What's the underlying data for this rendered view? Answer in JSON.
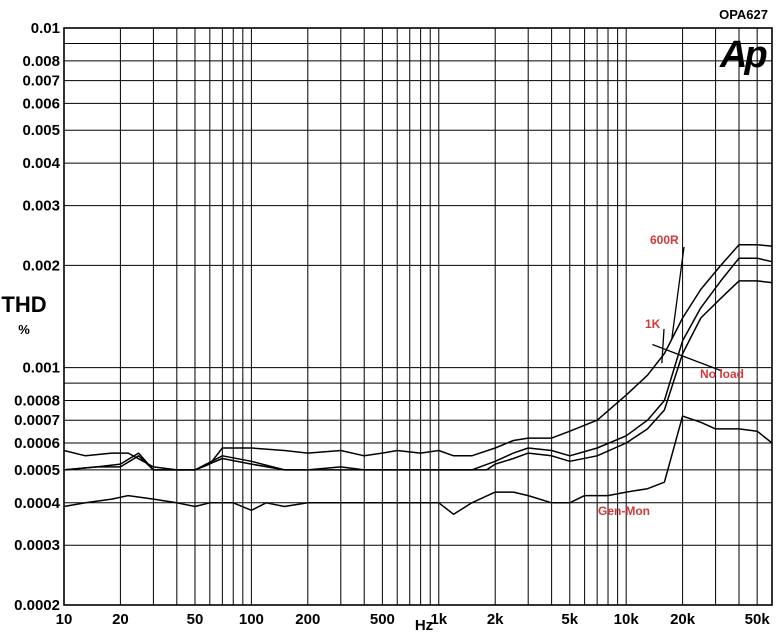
{
  "chart_data": {
    "type": "line",
    "title": "OPA627",
    "logo_text": "Ap",
    "ylabel": "THD",
    "yunit": "%",
    "xunit": "Hz",
    "xscale": "log",
    "yscale": "log",
    "xlim": [
      10,
      60000
    ],
    "ylim": [
      0.0002,
      0.01
    ],
    "grid": true,
    "x_ticks": [
      {
        "v": 10,
        "label": "10"
      },
      {
        "v": 20,
        "label": "20"
      },
      {
        "v": 50,
        "label": "50"
      },
      {
        "v": 100,
        "label": "100"
      },
      {
        "v": 200,
        "label": "200"
      },
      {
        "v": 500,
        "label": "500"
      },
      {
        "v": 1000,
        "label": "1k"
      },
      {
        "v": 2000,
        "label": "2k"
      },
      {
        "v": 5000,
        "label": "5k"
      },
      {
        "v": 10000,
        "label": "10k"
      },
      {
        "v": 20000,
        "label": "20k"
      },
      {
        "v": 50000,
        "label": "50k"
      }
    ],
    "y_ticks": [
      {
        "v": 0.01,
        "label": "0.01"
      },
      {
        "v": 0.008,
        "label": "0.008"
      },
      {
        "v": 0.007,
        "label": "0.007"
      },
      {
        "v": 0.006,
        "label": "0.006"
      },
      {
        "v": 0.005,
        "label": "0.005"
      },
      {
        "v": 0.004,
        "label": "0.004"
      },
      {
        "v": 0.003,
        "label": "0.003"
      },
      {
        "v": 0.002,
        "label": "0.002"
      },
      {
        "v": 0.001,
        "label": "0.001"
      },
      {
        "v": 0.0008,
        "label": "0.0008"
      },
      {
        "v": 0.0007,
        "label": "0.0007"
      },
      {
        "v": 0.0006,
        "label": "0.0006"
      },
      {
        "v": 0.0005,
        "label": "0.0005"
      },
      {
        "v": 0.0004,
        "label": "0.0004"
      },
      {
        "v": 0.0003,
        "label": "0.0003"
      },
      {
        "v": 0.0002,
        "label": "0.0002"
      }
    ],
    "series": [
      {
        "name": "600R",
        "points": [
          [
            10,
            0.00057
          ],
          [
            13,
            0.00055
          ],
          [
            18,
            0.00056
          ],
          [
            22,
            0.00056
          ],
          [
            30,
            0.00051
          ],
          [
            40,
            0.0005
          ],
          [
            50,
            0.0005
          ],
          [
            60,
            0.00052
          ],
          [
            70,
            0.00058
          ],
          [
            100,
            0.00058
          ],
          [
            150,
            0.00057
          ],
          [
            200,
            0.00056
          ],
          [
            300,
            0.00057
          ],
          [
            400,
            0.00055
          ],
          [
            500,
            0.00056
          ],
          [
            600,
            0.00057
          ],
          [
            800,
            0.00056
          ],
          [
            1000,
            0.00057
          ],
          [
            1200,
            0.00055
          ],
          [
            1500,
            0.00055
          ],
          [
            2000,
            0.00058
          ],
          [
            2500,
            0.00061
          ],
          [
            3000,
            0.00062
          ],
          [
            4000,
            0.00062
          ],
          [
            5000,
            0.00065
          ],
          [
            7000,
            0.0007
          ],
          [
            10000,
            0.00083
          ],
          [
            13000,
            0.00095
          ],
          [
            16000,
            0.0011
          ],
          [
            20000,
            0.0014
          ],
          [
            25000,
            0.0017
          ],
          [
            32000,
            0.002
          ],
          [
            40000,
            0.0023
          ],
          [
            50000,
            0.0023
          ],
          [
            60000,
            0.00228
          ]
        ]
      },
      {
        "name": "1K",
        "points": [
          [
            10,
            0.0005
          ],
          [
            15,
            0.00051
          ],
          [
            20,
            0.00051
          ],
          [
            25,
            0.00055
          ],
          [
            30,
            0.0005
          ],
          [
            40,
            0.0005
          ],
          [
            50,
            0.0005
          ],
          [
            70,
            0.00055
          ],
          [
            100,
            0.00053
          ],
          [
            150,
            0.0005
          ],
          [
            200,
            0.0005
          ],
          [
            300,
            0.0005
          ],
          [
            500,
            0.0005
          ],
          [
            1000,
            0.0005
          ],
          [
            1500,
            0.0005
          ],
          [
            2000,
            0.00053
          ],
          [
            2500,
            0.00056
          ],
          [
            3000,
            0.00058
          ],
          [
            4000,
            0.00057
          ],
          [
            5000,
            0.00055
          ],
          [
            7000,
            0.00058
          ],
          [
            10000,
            0.00063
          ],
          [
            13000,
            0.0007
          ],
          [
            16000,
            0.0008
          ],
          [
            20000,
            0.0012
          ],
          [
            25000,
            0.0015
          ],
          [
            32000,
            0.0018
          ],
          [
            40000,
            0.0021
          ],
          [
            50000,
            0.0021
          ],
          [
            60000,
            0.00205
          ]
        ]
      },
      {
        "name": "No load",
        "points": [
          [
            10,
            0.0005
          ],
          [
            15,
            0.00051
          ],
          [
            20,
            0.00052
          ],
          [
            25,
            0.00056
          ],
          [
            30,
            0.0005
          ],
          [
            40,
            0.0005
          ],
          [
            50,
            0.0005
          ],
          [
            70,
            0.00054
          ],
          [
            100,
            0.00052
          ],
          [
            150,
            0.0005
          ],
          [
            200,
            0.0005
          ],
          [
            300,
            0.00051
          ],
          [
            400,
            0.0005
          ],
          [
            1000,
            0.0005
          ],
          [
            1800,
            0.0005
          ],
          [
            2000,
            0.00052
          ],
          [
            2500,
            0.00054
          ],
          [
            3000,
            0.00056
          ],
          [
            4000,
            0.00055
          ],
          [
            5000,
            0.00053
          ],
          [
            7000,
            0.00055
          ],
          [
            10000,
            0.0006
          ],
          [
            13000,
            0.00066
          ],
          [
            16000,
            0.00075
          ],
          [
            20000,
            0.0011
          ],
          [
            25000,
            0.0014
          ],
          [
            32000,
            0.0016
          ],
          [
            40000,
            0.0018
          ],
          [
            50000,
            0.0018
          ],
          [
            60000,
            0.00178
          ]
        ]
      },
      {
        "name": "Gen-Mon",
        "points": [
          [
            10,
            0.00039
          ],
          [
            13,
            0.0004
          ],
          [
            18,
            0.00041
          ],
          [
            22,
            0.00042
          ],
          [
            30,
            0.00041
          ],
          [
            40,
            0.0004
          ],
          [
            50,
            0.00039
          ],
          [
            60,
            0.0004
          ],
          [
            80,
            0.0004
          ],
          [
            100,
            0.00038
          ],
          [
            120,
            0.0004
          ],
          [
            150,
            0.00039
          ],
          [
            200,
            0.0004
          ],
          [
            300,
            0.0004
          ],
          [
            500,
            0.0004
          ],
          [
            800,
            0.0004
          ],
          [
            1000,
            0.0004
          ],
          [
            1200,
            0.00037
          ],
          [
            1500,
            0.0004
          ],
          [
            2000,
            0.00043
          ],
          [
            2500,
            0.00043
          ],
          [
            3000,
            0.00042
          ],
          [
            4000,
            0.0004
          ],
          [
            5000,
            0.0004
          ],
          [
            6000,
            0.00042
          ],
          [
            8000,
            0.00042
          ],
          [
            10000,
            0.00043
          ],
          [
            13000,
            0.00044
          ],
          [
            16000,
            0.00046
          ],
          [
            20000,
            0.00072
          ],
          [
            25000,
            0.00069
          ],
          [
            30000,
            0.00066
          ],
          [
            40000,
            0.00066
          ],
          [
            50000,
            0.00065
          ],
          [
            60000,
            0.0006
          ]
        ]
      }
    ],
    "annotations": [
      {
        "text": "600R",
        "series": "600R"
      },
      {
        "text": "1K",
        "series": "1K"
      },
      {
        "text": "No load",
        "series": "No load"
      },
      {
        "text": "Gen-Mon",
        "series": "Gen-Mon"
      }
    ],
    "colors": {
      "line": "#000000",
      "grid": "#000000",
      "annotation": "#d23a3a"
    }
  }
}
